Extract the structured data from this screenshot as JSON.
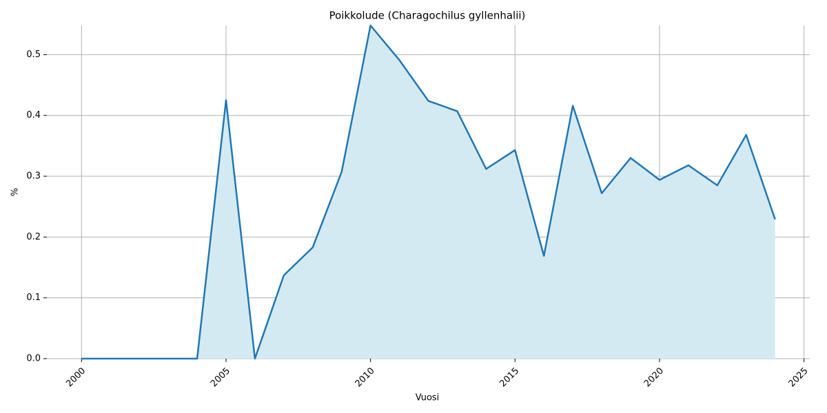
{
  "chart_data": {
    "type": "line",
    "title": "Poikkolude (Charagochilus gyllenhalii)",
    "x_label": "Vuosi",
    "y_label": "%",
    "x": [
      2000,
      2001,
      2002,
      2003,
      2004,
      2005,
      2006,
      2007,
      2008,
      2009,
      2010,
      2011,
      2012,
      2013,
      2014,
      2015,
      2016,
      2017,
      2018,
      2019,
      2020,
      2021,
      2022,
      2023,
      2024
    ],
    "values": [
      0,
      0,
      0,
      0,
      0,
      0.425,
      0,
      0.137,
      0.183,
      0.307,
      0.548,
      0.491,
      0.424,
      0.407,
      0.312,
      0.343,
      0.169,
      0.416,
      0.272,
      0.33,
      0.294,
      0.318,
      0.285,
      0.368,
      0.229
    ],
    "color": "#1f77b4",
    "fill_color": "#d4eaf2",
    "xlim": [
      1998.8,
      2025.2
    ],
    "xticks": [
      2000,
      2005,
      2010,
      2015,
      2020,
      2025
    ],
    "ylim": [
      0,
      0.548
    ],
    "yticks": [
      {
        "value": 0,
        "label": "0.0"
      },
      0.1,
      0.2,
      0.3,
      0.4,
      0.5
    ],
    "grid": true
  }
}
